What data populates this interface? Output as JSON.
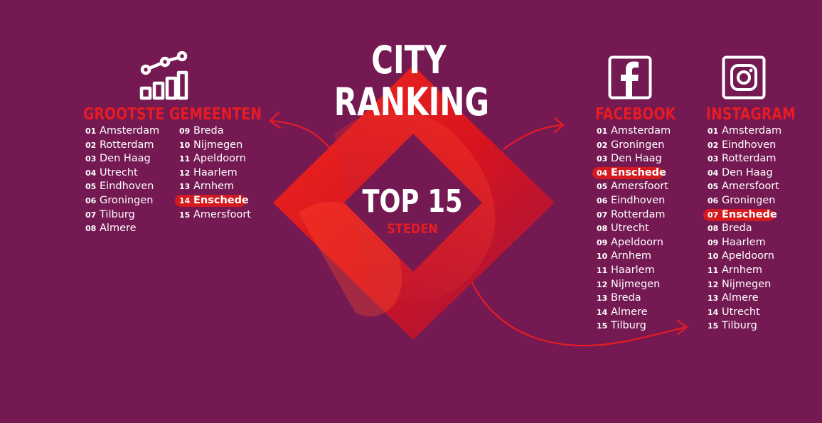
{
  "title": {
    "line1": "CITY",
    "line2": "RANKING"
  },
  "center": {
    "top": "TOP 15",
    "sub": "STEDEN"
  },
  "colors": {
    "background": "#741952",
    "accent": "#e51c24",
    "highlight": "#d41a1f"
  },
  "highlight_city": "Enschede",
  "sections": {
    "gemeenten": {
      "heading": "GROOTSTE GEMEENTEN",
      "icon": "growth-chart-icon",
      "col1": [
        {
          "num": "01",
          "name": "Amsterdam"
        },
        {
          "num": "02",
          "name": "Rotterdam"
        },
        {
          "num": "03",
          "name": "Den Haag"
        },
        {
          "num": "04",
          "name": "Utrecht"
        },
        {
          "num": "05",
          "name": "Eindhoven"
        },
        {
          "num": "06",
          "name": "Groningen"
        },
        {
          "num": "07",
          "name": "Tilburg"
        },
        {
          "num": "08",
          "name": "Almere"
        }
      ],
      "col2": [
        {
          "num": "09",
          "name": "Breda"
        },
        {
          "num": "10",
          "name": "Nijmegen"
        },
        {
          "num": "11",
          "name": "Apeldoorn"
        },
        {
          "num": "12",
          "name": "Haarlem"
        },
        {
          "num": "13",
          "name": "Arnhem"
        },
        {
          "num": "14",
          "name": "Enschede"
        },
        {
          "num": "15",
          "name": "Amersfoort"
        }
      ]
    },
    "facebook": {
      "heading": "FACEBOOK",
      "icon": "facebook-icon",
      "items": [
        {
          "num": "01",
          "name": "Amsterdam"
        },
        {
          "num": "02",
          "name": "Groningen"
        },
        {
          "num": "03",
          "name": "Den Haag"
        },
        {
          "num": "04",
          "name": "Enschede"
        },
        {
          "num": "05",
          "name": "Amersfoort"
        },
        {
          "num": "06",
          "name": "Eindhoven"
        },
        {
          "num": "07",
          "name": "Rotterdam"
        },
        {
          "num": "08",
          "name": "Utrecht"
        },
        {
          "num": "09",
          "name": "Apeldoorn"
        },
        {
          "num": "10",
          "name": "Arnhem"
        },
        {
          "num": "11",
          "name": "Haarlem"
        },
        {
          "num": "12",
          "name": "Nijmegen"
        },
        {
          "num": "13",
          "name": "Breda"
        },
        {
          "num": "14",
          "name": "Almere"
        },
        {
          "num": "15",
          "name": "Tilburg"
        }
      ]
    },
    "instagram": {
      "heading": "INSTAGRAM",
      "icon": "instagram-icon",
      "items": [
        {
          "num": "01",
          "name": "Amsterdam"
        },
        {
          "num": "02",
          "name": "Eindhoven"
        },
        {
          "num": "03",
          "name": "Rotterdam"
        },
        {
          "num": "04",
          "name": "Den Haag"
        },
        {
          "num": "05",
          "name": "Amersfoort"
        },
        {
          "num": "06",
          "name": "Groningen"
        },
        {
          "num": "07",
          "name": "Enschede"
        },
        {
          "num": "08",
          "name": "Breda"
        },
        {
          "num": "09",
          "name": "Haarlem"
        },
        {
          "num": "10",
          "name": "Apeldoorn"
        },
        {
          "num": "11",
          "name": "Arnhem"
        },
        {
          "num": "12",
          "name": "Nijmegen"
        },
        {
          "num": "13",
          "name": "Almere"
        },
        {
          "num": "14",
          "name": "Utrecht"
        },
        {
          "num": "15",
          "name": "Tilburg"
        }
      ]
    }
  }
}
